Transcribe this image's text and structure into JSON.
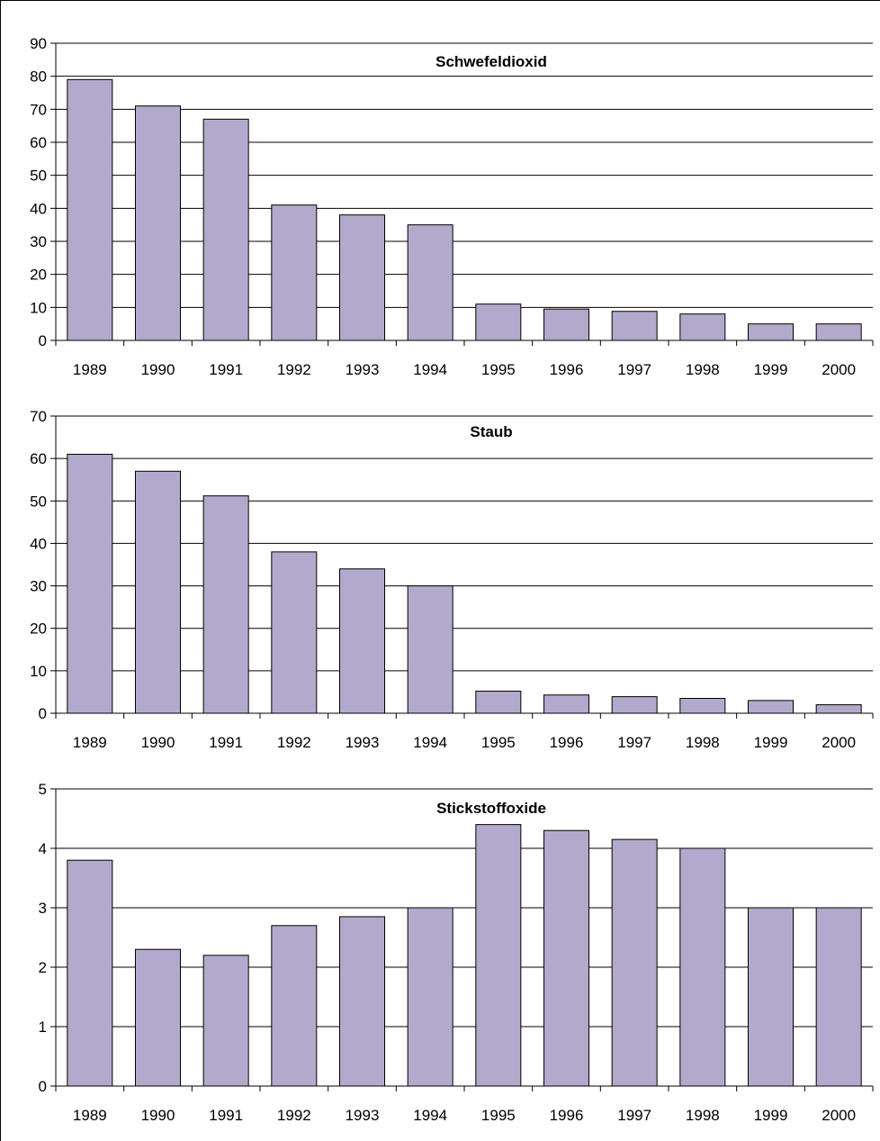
{
  "chart_data": [
    {
      "type": "bar",
      "title": "Schwefeldioxid",
      "categories": [
        "1989",
        "1990",
        "1991",
        "1992",
        "1993",
        "1994",
        "1995",
        "1996",
        "1997",
        "1998",
        "1999",
        "2000"
      ],
      "values": [
        79,
        71,
        67,
        41,
        38,
        35,
        11,
        9.5,
        8.8,
        8,
        5,
        5
      ],
      "ylim": [
        0,
        90
      ],
      "yticks": [
        "0",
        "10",
        "20",
        "30",
        "40",
        "50",
        "60",
        "70",
        "80",
        "90"
      ],
      "grid": true,
      "bar_color": "#b3a9cc"
    },
    {
      "type": "bar",
      "title": "Staub",
      "categories": [
        "1989",
        "1990",
        "1991",
        "1992",
        "1993",
        "1994",
        "1995",
        "1996",
        "1997",
        "1998",
        "1999",
        "2000"
      ],
      "values": [
        61,
        57,
        51.2,
        38,
        34,
        30,
        5.2,
        4.3,
        3.9,
        3.5,
        3,
        2
      ],
      "ylim": [
        0,
        70
      ],
      "yticks": [
        "0",
        "10",
        "20",
        "30",
        "40",
        "50",
        "60",
        "70"
      ],
      "grid": true,
      "bar_color": "#b3a9cc"
    },
    {
      "type": "bar",
      "title": "Stickstoffoxide",
      "categories": [
        "1989",
        "1990",
        "1991",
        "1992",
        "1993",
        "1994",
        "1995",
        "1996",
        "1997",
        "1998",
        "1999",
        "2000"
      ],
      "values": [
        3.8,
        2.3,
        2.2,
        2.7,
        2.85,
        3.0,
        4.4,
        4.3,
        4.15,
        4.0,
        3.0,
        3.0
      ],
      "ylim": [
        0,
        5
      ],
      "yticks": [
        "0",
        "1",
        "2",
        "3",
        "4",
        "5"
      ],
      "grid": true,
      "bar_color": "#b3a9cc"
    }
  ]
}
